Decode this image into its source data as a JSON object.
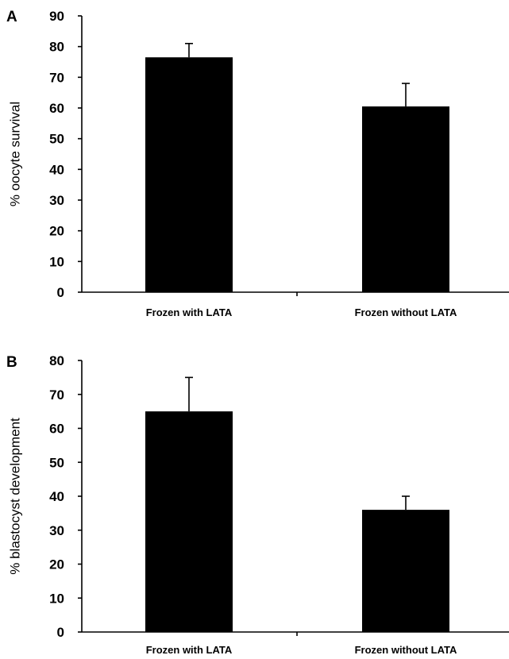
{
  "chart_data": [
    {
      "panel": "A",
      "type": "bar",
      "categories": [
        "Frozen with LATA",
        "Frozen without LATA"
      ],
      "values": [
        76.5,
        60.5
      ],
      "errors": [
        4.5,
        7.5
      ],
      "ylabel": "% oocyte survival",
      "ylim": [
        0,
        90
      ],
      "yticks": [
        "0",
        "10",
        "20",
        "30",
        "40",
        "50",
        "60",
        "70",
        "80",
        "90"
      ],
      "bar_color": "#000000",
      "grid": false
    },
    {
      "panel": "B",
      "type": "bar",
      "categories": [
        "Frozen with LATA",
        "Frozen without LATA"
      ],
      "values": [
        65,
        36
      ],
      "errors": [
        10,
        4
      ],
      "ylabel": "% blastocyst development",
      "ylim": [
        0,
        80
      ],
      "yticks": [
        "0",
        "10",
        "20",
        "30",
        "40",
        "50",
        "60",
        "70",
        "80"
      ],
      "bar_color": "#000000",
      "grid": false
    }
  ]
}
